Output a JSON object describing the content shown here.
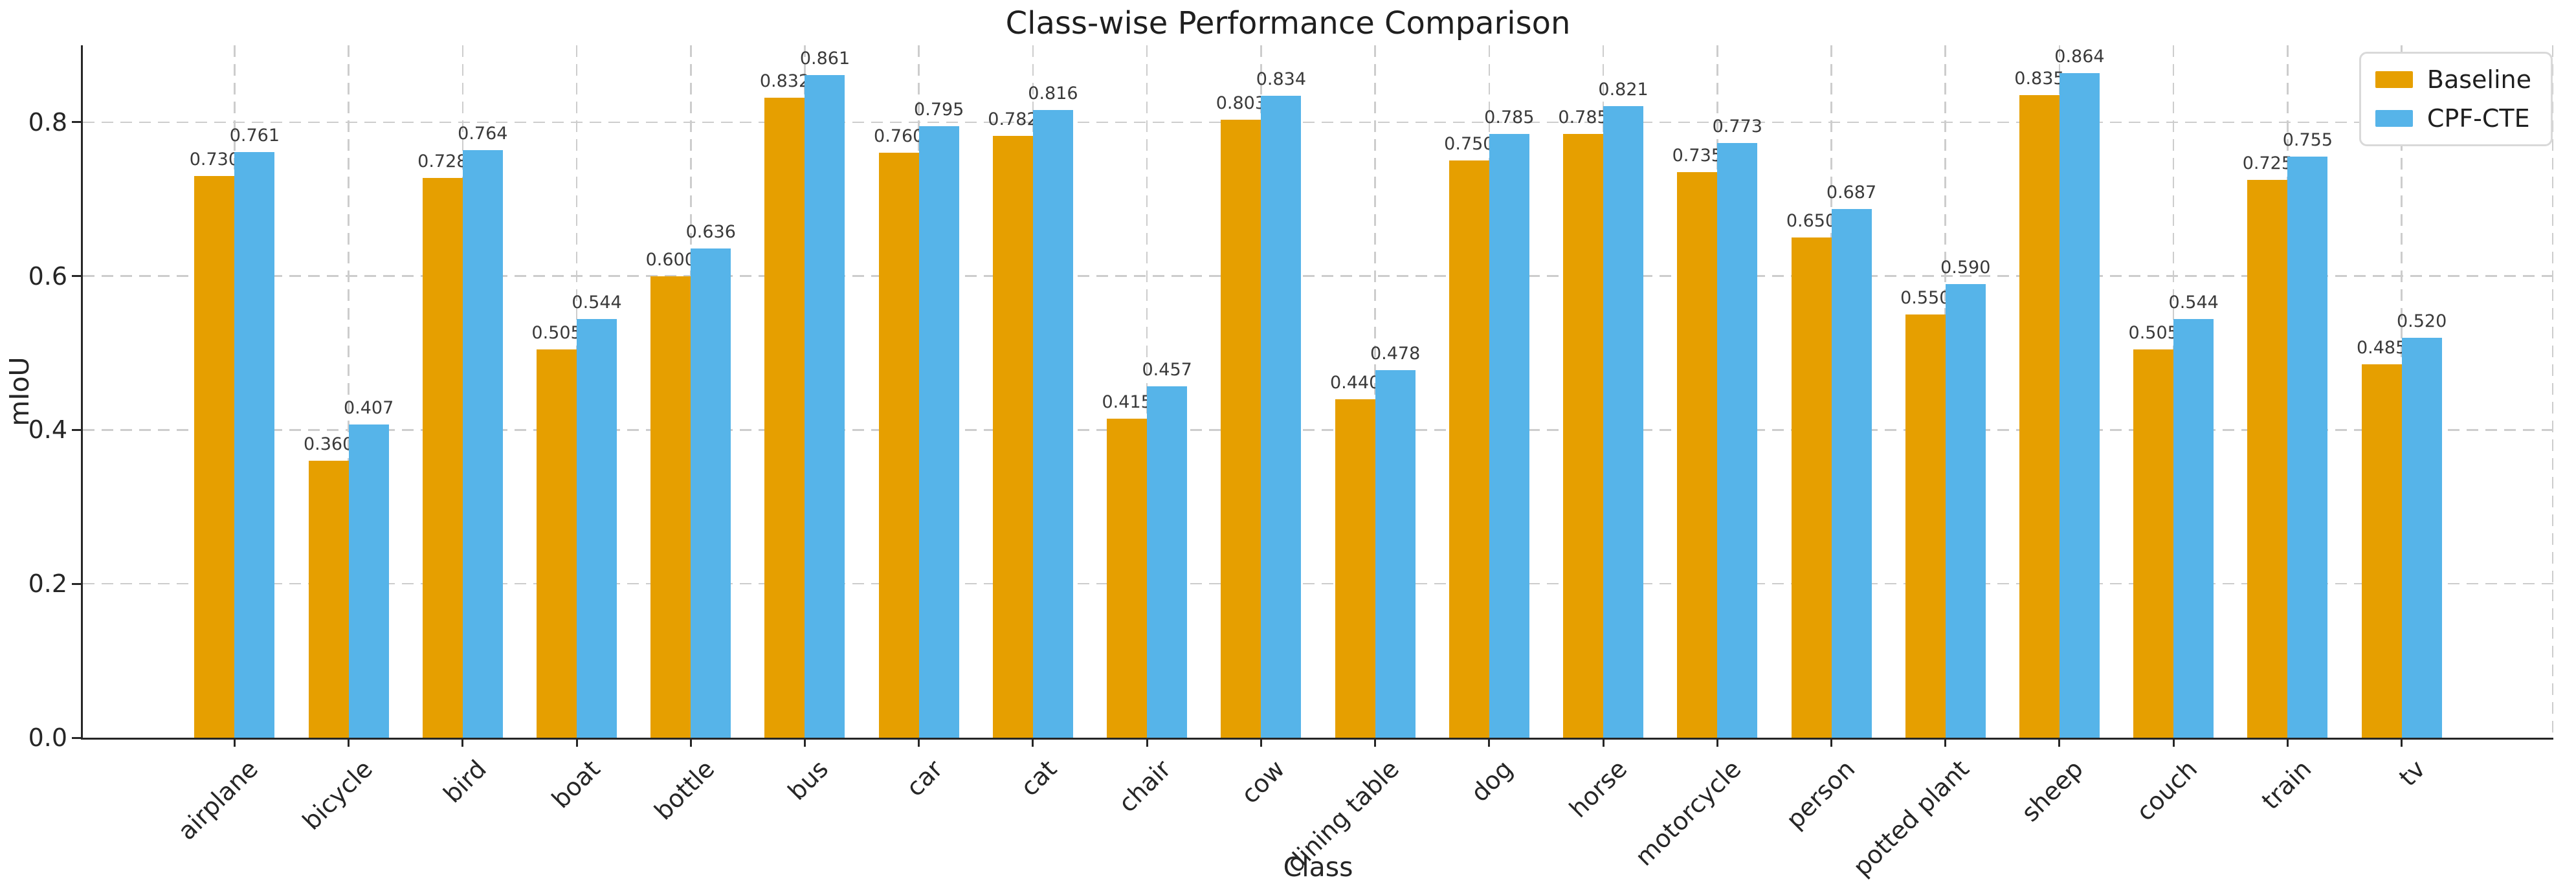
{
  "title": "Class-wise Performance Comparison",
  "style": {
    "background": "#ffffff",
    "grid_color": "#cdcdcd",
    "spine_color": "#262626",
    "text_color": "#262626",
    "value_label_color": "#3a3a3a"
  },
  "chart_data": {
    "type": "bar",
    "title": "Class-wise Performance Comparison",
    "xlabel": "Class",
    "ylabel": "mIoU",
    "ylim": [
      0,
      0.9
    ],
    "yticks": [
      0.0,
      0.2,
      0.4,
      0.6,
      0.8
    ],
    "grid": "dashed horizontal at yticks and dashed vertical at each category center, light gray",
    "legend_position": "upper right",
    "bar_value_labels": "shown above each bar, 3 decimals",
    "categories": [
      "airplane",
      "bicycle",
      "bird",
      "boat",
      "bottle",
      "bus",
      "car",
      "cat",
      "chair",
      "cow",
      "dining table",
      "dog",
      "horse",
      "motorcycle",
      "person",
      "potted plant",
      "sheep",
      "couch",
      "train",
      "tv"
    ],
    "series": [
      {
        "name": "Baseline",
        "color": "#E69F00",
        "values": [
          0.73,
          0.36,
          0.728,
          0.505,
          0.6,
          0.832,
          0.76,
          0.782,
          0.415,
          0.803,
          0.44,
          0.75,
          0.785,
          0.735,
          0.65,
          0.55,
          0.835,
          0.505,
          0.725,
          0.485
        ]
      },
      {
        "name": "CPF-CTE",
        "color": "#56B4E9",
        "values": [
          0.761,
          0.407,
          0.764,
          0.544,
          0.636,
          0.861,
          0.795,
          0.816,
          0.457,
          0.834,
          0.478,
          0.785,
          0.821,
          0.773,
          0.687,
          0.59,
          0.864,
          0.544,
          0.755,
          0.52
        ]
      }
    ]
  }
}
